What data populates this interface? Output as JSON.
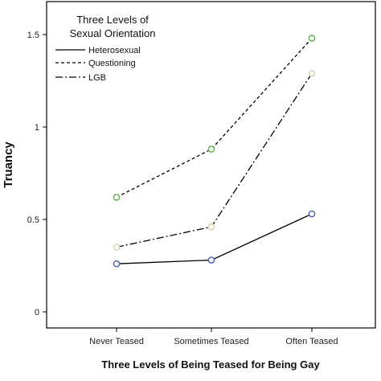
{
  "chart_data": {
    "type": "line",
    "title": "",
    "xlabel": "Three Levels of Being Teased for Being Gay",
    "ylabel": "Truancy",
    "categories": [
      "Never Teased",
      "Sometimes Teased",
      "Often Teased"
    ],
    "ylim": [
      0,
      1.65
    ],
    "yticks": [
      0,
      0.5,
      1,
      1.5
    ],
    "ytick_labels": [
      "0",
      "0.5",
      "1",
      "1.5"
    ],
    "grid": false,
    "legend": {
      "title_lines": [
        "Three Levels of",
        "Sexual Orientation"
      ],
      "placement": "top-left"
    },
    "series": [
      {
        "name": "Heterosexual",
        "values": [
          0.26,
          0.28,
          0.53
        ],
        "dash": "solid",
        "marker_color": "#4a5fb0"
      },
      {
        "name": "Questioning",
        "values": [
          0.62,
          0.88,
          1.48
        ],
        "dash": "dashed",
        "marker_color": "#5fb24a"
      },
      {
        "name": "LGB",
        "values": [
          0.35,
          0.46,
          1.29
        ],
        "dash": "dash-dot",
        "marker_color": "#d8d2a8"
      }
    ]
  }
}
